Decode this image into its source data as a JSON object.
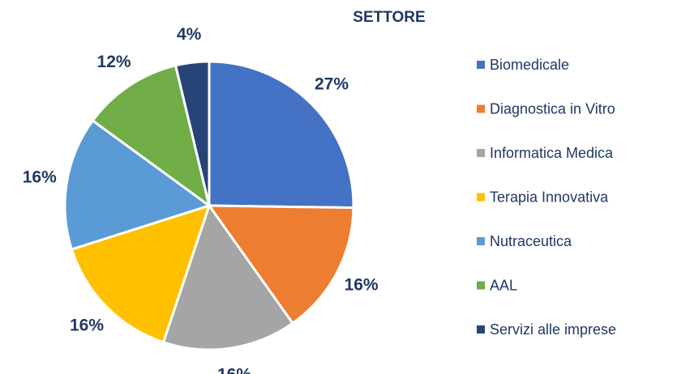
{
  "chart_data": {
    "type": "pie",
    "title": "SETTORE",
    "categories": [
      "Biomedicale",
      "Diagnostica in Vitro",
      "Informatica Medica",
      "Terapia Innovativa",
      "Nutraceutica",
      "AAL",
      "Servizi alle imprese"
    ],
    "values": [
      27,
      16,
      16,
      16,
      16,
      12,
      4
    ],
    "value_labels": [
      "27%",
      "16%",
      "16%",
      "16%",
      "16%",
      "12%",
      "4%"
    ],
    "colors": [
      "#4472c4",
      "#ed7d31",
      "#a5a5a5",
      "#ffc000",
      "#5b9bd5",
      "#70ad47",
      "#264478"
    ],
    "legend": "right"
  }
}
